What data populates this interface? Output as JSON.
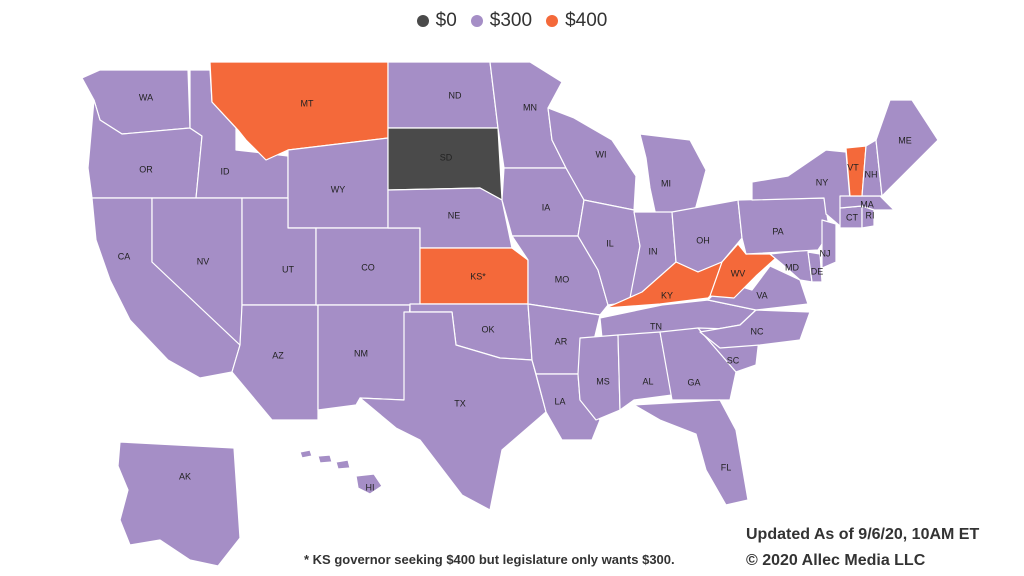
{
  "legend": [
    {
      "label": "$0",
      "color": "#4a4a4a"
    },
    {
      "label": "$300",
      "color": "#a58ec6"
    },
    {
      "label": "$400",
      "color": "#f4693a"
    }
  ],
  "colors": {
    "zero": "#4a4a4a",
    "three_hundred": "#a58ec6",
    "four_hundred": "#f4693a"
  },
  "footnote": "* KS governor seeking $400 but legislature only wants $300.",
  "updated": "Updated As of 9/6/20, 10AM ET",
  "copyright": "© 2020 Allec Media LLC",
  "states": [
    {
      "abbr": "WA",
      "label": "WA",
      "value": "$300"
    },
    {
      "abbr": "OR",
      "label": "OR",
      "value": "$300"
    },
    {
      "abbr": "CA",
      "label": "CA",
      "value": "$300"
    },
    {
      "abbr": "ID",
      "label": "ID",
      "value": "$300"
    },
    {
      "abbr": "NV",
      "label": "NV",
      "value": "$300"
    },
    {
      "abbr": "MT",
      "label": "MT",
      "value": "$400"
    },
    {
      "abbr": "WY",
      "label": "WY",
      "value": "$300"
    },
    {
      "abbr": "UT",
      "label": "UT",
      "value": "$300"
    },
    {
      "abbr": "AZ",
      "label": "AZ",
      "value": "$300"
    },
    {
      "abbr": "CO",
      "label": "CO",
      "value": "$300"
    },
    {
      "abbr": "NM",
      "label": "NM",
      "value": "$300"
    },
    {
      "abbr": "ND",
      "label": "ND",
      "value": "$300"
    },
    {
      "abbr": "SD",
      "label": "SD",
      "value": "$0"
    },
    {
      "abbr": "NE",
      "label": "NE",
      "value": "$300"
    },
    {
      "abbr": "KS",
      "label": "KS*",
      "value": "$400"
    },
    {
      "abbr": "OK",
      "label": "OK",
      "value": "$300"
    },
    {
      "abbr": "TX",
      "label": "TX",
      "value": "$300"
    },
    {
      "abbr": "MN",
      "label": "MN",
      "value": "$300"
    },
    {
      "abbr": "IA",
      "label": "IA",
      "value": "$300"
    },
    {
      "abbr": "MO",
      "label": "MO",
      "value": "$300"
    },
    {
      "abbr": "AR",
      "label": "AR",
      "value": "$300"
    },
    {
      "abbr": "LA",
      "label": "LA",
      "value": "$300"
    },
    {
      "abbr": "WI",
      "label": "WI",
      "value": "$300"
    },
    {
      "abbr": "IL",
      "label": "IL",
      "value": "$300"
    },
    {
      "abbr": "MI",
      "label": "MI",
      "value": "$300"
    },
    {
      "abbr": "IN",
      "label": "IN",
      "value": "$300"
    },
    {
      "abbr": "OH",
      "label": "OH",
      "value": "$300"
    },
    {
      "abbr": "KY",
      "label": "KY",
      "value": "$400"
    },
    {
      "abbr": "TN",
      "label": "TN",
      "value": "$300"
    },
    {
      "abbr": "MS",
      "label": "MS",
      "value": "$300"
    },
    {
      "abbr": "AL",
      "label": "AL",
      "value": "$300"
    },
    {
      "abbr": "GA",
      "label": "GA",
      "value": "$300"
    },
    {
      "abbr": "FL",
      "label": "FL",
      "value": "$300"
    },
    {
      "abbr": "SC",
      "label": "SC",
      "value": "$300"
    },
    {
      "abbr": "NC",
      "label": "NC",
      "value": "$300"
    },
    {
      "abbr": "VA",
      "label": "VA",
      "value": "$300"
    },
    {
      "abbr": "WV",
      "label": "WV",
      "value": "$400"
    },
    {
      "abbr": "MD",
      "label": "MD",
      "value": "$300"
    },
    {
      "abbr": "DE",
      "label": "DE",
      "value": "$300"
    },
    {
      "abbr": "PA",
      "label": "PA",
      "value": "$300"
    },
    {
      "abbr": "NJ",
      "label": "NJ",
      "value": "$300"
    },
    {
      "abbr": "NY",
      "label": "NY",
      "value": "$300"
    },
    {
      "abbr": "CT",
      "label": "CT",
      "value": "$300"
    },
    {
      "abbr": "RI",
      "label": "RI",
      "value": "$300"
    },
    {
      "abbr": "MA",
      "label": "MA",
      "value": "$300"
    },
    {
      "abbr": "VT",
      "label": "VT",
      "value": "$400"
    },
    {
      "abbr": "NH",
      "label": "NH",
      "value": "$300"
    },
    {
      "abbr": "ME",
      "label": "ME",
      "value": "$300"
    },
    {
      "abbr": "AK",
      "label": "AK",
      "value": "$300"
    },
    {
      "abbr": "HI",
      "label": "HI",
      "value": "$300"
    }
  ]
}
